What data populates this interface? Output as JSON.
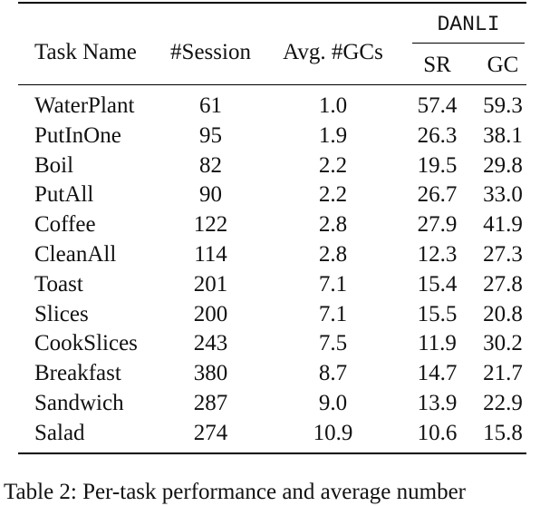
{
  "header": {
    "task_name": "Task Name",
    "session": "#Session",
    "avg_gcs": "Avg. #GCs",
    "group": "DANLI",
    "sr": "SR",
    "gc": "GC"
  },
  "rows": [
    {
      "task": "WaterPlant",
      "session": "61",
      "avg": "1.0",
      "sr": "57.4",
      "gc": "59.3"
    },
    {
      "task": "PutInOne",
      "session": "95",
      "avg": "1.9",
      "sr": "26.3",
      "gc": "38.1"
    },
    {
      "task": "Boil",
      "session": "82",
      "avg": "2.2",
      "sr": "19.5",
      "gc": "29.8"
    },
    {
      "task": "PutAll",
      "session": "90",
      "avg": "2.2",
      "sr": "26.7",
      "gc": "33.0"
    },
    {
      "task": "Coffee",
      "session": "122",
      "avg": "2.8",
      "sr": "27.9",
      "gc": "41.9"
    },
    {
      "task": "CleanAll",
      "session": "114",
      "avg": "2.8",
      "sr": "12.3",
      "gc": "27.3"
    },
    {
      "task": "Toast",
      "session": "201",
      "avg": "7.1",
      "sr": "15.4",
      "gc": "27.8"
    },
    {
      "task": "Slices",
      "session": "200",
      "avg": "7.1",
      "sr": "15.5",
      "gc": "20.8"
    },
    {
      "task": "CookSlices",
      "session": "243",
      "avg": "7.5",
      "sr": "11.9",
      "gc": "30.2"
    },
    {
      "task": "Breakfast",
      "session": "380",
      "avg": "8.7",
      "sr": "14.7",
      "gc": "21.7"
    },
    {
      "task": "Sandwich",
      "session": "287",
      "avg": "9.0",
      "sr": "13.9",
      "gc": "22.9"
    },
    {
      "task": "Salad",
      "session": "274",
      "avg": "10.9",
      "sr": "10.6",
      "gc": "15.8"
    }
  ],
  "caption": "Table 2:   Per-task performance and average number"
}
